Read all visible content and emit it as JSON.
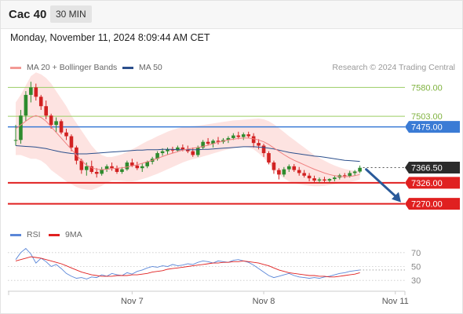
{
  "header": {
    "instrument": "Cac 40",
    "timeframe": "30 MIN"
  },
  "datetime": "Monday, November 11, 2024 8:09:44 AM CET",
  "legend": {
    "bollinger_label": "MA 20 + Bollinger Bands",
    "ma50_label": "MA 50",
    "rsi_label": "RSI",
    "rsi_ma_label": "9MA"
  },
  "credit": "Research © 2024 Trading Central",
  "colors": {
    "band_fill": "#fde3e1",
    "ma20": "#f08080",
    "ma50": "#2c4f8c",
    "bull": "#2e8b2e",
    "bear": "#d22222",
    "support": "#e02020",
    "pivot": "#3a7bd5",
    "resistance": "#9acd63",
    "current": "#2b2b2b",
    "arrow": "#2a5a9a",
    "rsi": "#5b87d8",
    "rsi_ma": "#e02020"
  },
  "chart_data": [
    {
      "type": "candlestick",
      "ylim": [
        7215,
        7612
      ],
      "x_ticks": [
        {
          "label": "Nov 7",
          "index": 23
        },
        {
          "label": "Nov 8",
          "index": 49
        },
        {
          "label": "Nov 11",
          "index": 75
        }
      ],
      "levels": [
        {
          "label": "7580.00",
          "value": 7580,
          "kind": "resistance"
        },
        {
          "label": "7503.00",
          "value": 7503,
          "kind": "resistance"
        },
        {
          "label": "7475.00",
          "value": 7475,
          "kind": "pivot"
        },
        {
          "label": "7366.50",
          "value": 7366.5,
          "kind": "current"
        },
        {
          "label": "7326.00",
          "value": 7326,
          "kind": "support"
        },
        {
          "label": "7270.00",
          "value": 7270,
          "kind": "support"
        }
      ],
      "ohlc": [
        [
          7440,
          7480,
          7425,
          7440
        ],
        [
          7440,
          7520,
          7430,
          7505
        ],
        [
          7505,
          7570,
          7490,
          7560
        ],
        [
          7560,
          7595,
          7540,
          7580
        ],
        [
          7580,
          7590,
          7545,
          7555
        ],
        [
          7555,
          7560,
          7520,
          7530
        ],
        [
          7530,
          7545,
          7495,
          7505
        ],
        [
          7505,
          7510,
          7470,
          7480
        ],
        [
          7480,
          7500,
          7460,
          7490
        ],
        [
          7490,
          7495,
          7455,
          7460
        ],
        [
          7460,
          7470,
          7440,
          7450
        ],
        [
          7450,
          7455,
          7410,
          7420
        ],
        [
          7420,
          7425,
          7375,
          7385
        ],
        [
          7385,
          7390,
          7350,
          7360
        ],
        [
          7360,
          7380,
          7345,
          7370
        ],
        [
          7370,
          7385,
          7350,
          7355
        ],
        [
          7355,
          7365,
          7340,
          7350
        ],
        [
          7350,
          7368,
          7345,
          7362
        ],
        [
          7362,
          7375,
          7355,
          7370
        ],
        [
          7370,
          7380,
          7358,
          7365
        ],
        [
          7365,
          7372,
          7350,
          7355
        ],
        [
          7355,
          7368,
          7350,
          7362
        ],
        [
          7362,
          7385,
          7358,
          7380
        ],
        [
          7380,
          7390,
          7368,
          7372
        ],
        [
          7372,
          7382,
          7360,
          7365
        ],
        [
          7365,
          7378,
          7355,
          7370
        ],
        [
          7370,
          7385,
          7365,
          7382
        ],
        [
          7382,
          7395,
          7375,
          7390
        ],
        [
          7390,
          7410,
          7385,
          7405
        ],
        [
          7405,
          7418,
          7398,
          7410
        ],
        [
          7410,
          7420,
          7402,
          7415
        ],
        [
          7415,
          7422,
          7405,
          7412
        ],
        [
          7412,
          7425,
          7408,
          7420
        ],
        [
          7420,
          7428,
          7410,
          7415
        ],
        [
          7415,
          7425,
          7405,
          7410
        ],
        [
          7410,
          7420,
          7395,
          7400
        ],
        [
          7400,
          7425,
          7395,
          7420
        ],
        [
          7420,
          7440,
          7415,
          7435
        ],
        [
          7435,
          7445,
          7425,
          7430
        ],
        [
          7430,
          7442,
          7420,
          7438
        ],
        [
          7438,
          7448,
          7428,
          7435
        ],
        [
          7435,
          7445,
          7430,
          7440
        ],
        [
          7440,
          7450,
          7432,
          7445
        ],
        [
          7445,
          7458,
          7440,
          7452
        ],
        [
          7452,
          7462,
          7442,
          7448
        ],
        [
          7448,
          7460,
          7440,
          7455
        ],
        [
          7455,
          7462,
          7445,
          7450
        ],
        [
          7450,
          7458,
          7420,
          7432
        ],
        [
          7432,
          7442,
          7415,
          7425
        ],
        [
          7425,
          7430,
          7395,
          7405
        ],
        [
          7405,
          7410,
          7375,
          7380
        ],
        [
          7380,
          7385,
          7350,
          7360
        ],
        [
          7360,
          7365,
          7335,
          7348
        ],
        [
          7348,
          7368,
          7342,
          7362
        ],
        [
          7362,
          7375,
          7355,
          7370
        ],
        [
          7370,
          7376,
          7355,
          7360
        ],
        [
          7360,
          7368,
          7345,
          7352
        ],
        [
          7352,
          7360,
          7340,
          7345
        ],
        [
          7345,
          7352,
          7330,
          7338
        ],
        [
          7338,
          7345,
          7326,
          7332
        ],
        [
          7332,
          7340,
          7326,
          7335
        ],
        [
          7335,
          7342,
          7328,
          7332
        ],
        [
          7332,
          7338,
          7327,
          7336
        ],
        [
          7336,
          7345,
          7330,
          7340
        ],
        [
          7340,
          7350,
          7335,
          7346
        ],
        [
          7346,
          7352,
          7338,
          7344
        ],
        [
          7344,
          7358,
          7340,
          7352
        ],
        [
          7352,
          7360,
          7345,
          7356
        ],
        [
          7356,
          7372,
          7352,
          7366
        ]
      ],
      "ma20": [
        7470,
        7480,
        7490,
        7500,
        7505,
        7500,
        7490,
        7475,
        7460,
        7445,
        7430,
        7415,
        7400,
        7385,
        7373,
        7366,
        7362,
        7361,
        7362,
        7364,
        7365,
        7366,
        7368,
        7371,
        7374,
        7378,
        7382,
        7386,
        7391,
        7396,
        7401,
        7405,
        7409,
        7413,
        7416,
        7418,
        7420,
        7423,
        7426,
        7430,
        7434,
        7437,
        7440,
        7442,
        7444,
        7445,
        7445,
        7443,
        7440,
        7435,
        7428,
        7419,
        7410,
        7401,
        7393,
        7386,
        7380,
        7374,
        7368,
        7362,
        7357,
        7352,
        7348,
        7345,
        7343,
        7342,
        7343,
        7345,
        7348
      ],
      "bb_upper": [
        7540,
        7560,
        7585,
        7610,
        7620,
        7615,
        7605,
        7590,
        7570,
        7550,
        7530,
        7505,
        7485,
        7465,
        7445,
        7425,
        7410,
        7400,
        7395,
        7395,
        7398,
        7402,
        7408,
        7415,
        7422,
        7430,
        7437,
        7443,
        7450,
        7456,
        7462,
        7467,
        7471,
        7474,
        7476,
        7477,
        7478,
        7480,
        7482,
        7484,
        7486,
        7488,
        7490,
        7492,
        7493,
        7494,
        7495,
        7496,
        7497,
        7495,
        7490,
        7482,
        7472,
        7461,
        7450,
        7440,
        7430,
        7420,
        7410,
        7400,
        7392,
        7385,
        7378,
        7372,
        7367,
        7363,
        7360,
        7358,
        7358
      ],
      "bb_lower": [
        7400,
        7400,
        7395,
        7390,
        7390,
        7385,
        7375,
        7360,
        7350,
        7340,
        7330,
        7322,
        7315,
        7310,
        7308,
        7307,
        7312,
        7318,
        7326,
        7332,
        7332,
        7331,
        7330,
        7330,
        7332,
        7336,
        7340,
        7345,
        7350,
        7356,
        7362,
        7368,
        7374,
        7380,
        7385,
        7389,
        7392,
        7396,
        7400,
        7404,
        7408,
        7412,
        7415,
        7418,
        7420,
        7421,
        7420,
        7415,
        7405,
        7392,
        7378,
        7362,
        7348,
        7338,
        7330,
        7325,
        7322,
        7320,
        7318,
        7317,
        7317,
        7318,
        7320,
        7322,
        7324,
        7326,
        7328,
        7331,
        7335
      ],
      "ma50": [
        7425,
        7424,
        7423,
        7422,
        7421,
        7419,
        7417,
        7414,
        7411,
        7408,
        7406,
        7404,
        7403,
        7403,
        7403,
        7404,
        7405,
        7406,
        7407,
        7408,
        7409,
        7410,
        7411,
        7412,
        7413,
        7413,
        7414,
        7414,
        7414,
        7415,
        7415,
        7415,
        7414,
        7414,
        7414,
        7414,
        7414,
        7415,
        7415,
        7416,
        7417,
        7418,
        7419,
        7420,
        7421,
        7422,
        7422,
        7422,
        7421,
        7420,
        7418,
        7416,
        7413,
        7410,
        7407,
        7405,
        7403,
        7401,
        7399,
        7397,
        7396,
        7394,
        7392,
        7390,
        7388,
        7386,
        7385,
        7384,
        7383
      ]
    },
    {
      "type": "line",
      "ylim": [
        20,
        80
      ],
      "y_ticks": [
        70,
        50,
        30
      ],
      "series": [
        {
          "name": "RSI",
          "color": "#5b87d8",
          "values": [
            60,
            70,
            76,
            68,
            55,
            62,
            57,
            50,
            53,
            47,
            40,
            36,
            33,
            34,
            32,
            35,
            34,
            38,
            36,
            40,
            38,
            37,
            41,
            39,
            43,
            45,
            48,
            50,
            49,
            51,
            50,
            53,
            51,
            52,
            54,
            53,
            56,
            58,
            57,
            55,
            58,
            57,
            56,
            59,
            60,
            58,
            56,
            52,
            47,
            42,
            37,
            34,
            36,
            38,
            40,
            37,
            35,
            34,
            33,
            34,
            33,
            35,
            36,
            38,
            40,
            41,
            43,
            44,
            45
          ]
        },
        {
          "name": "9MA",
          "color": "#e02020",
          "values": [
            58,
            60,
            62,
            64,
            63,
            62,
            60,
            58,
            56,
            54,
            51,
            48,
            45,
            42,
            40,
            38,
            37,
            36,
            36,
            36,
            37,
            37,
            37,
            38,
            38,
            39,
            40,
            42,
            43,
            44,
            46,
            47,
            48,
            49,
            50,
            51,
            52,
            53,
            54,
            55,
            55,
            56,
            56,
            57,
            57,
            58,
            57,
            56,
            55,
            53,
            51,
            48,
            45,
            43,
            41,
            40,
            39,
            38,
            37,
            37,
            36,
            36,
            35,
            35,
            36,
            37,
            38,
            39,
            41
          ]
        }
      ]
    }
  ]
}
